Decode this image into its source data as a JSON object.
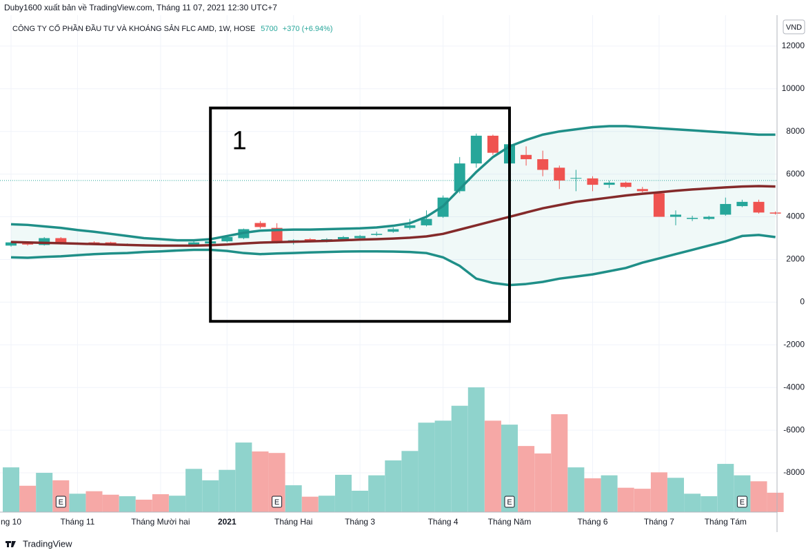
{
  "header": {
    "publisher": "Duby1600 xuất bản về TradingView.com, Tháng 11 07, 2021 12:30 UTC+7"
  },
  "footer": {
    "brand": "TradingView"
  },
  "chart_data": {
    "type": "candlestick",
    "title": "CÔNG TY CỔ PHẦN ĐẦU TƯ VÀ KHOÁNG SẢN FLC AMD, 1W, HOSE",
    "last_price": 5700,
    "change_label": "+370 (+6.94%)",
    "currency": "VND",
    "ylim": [
      -9840,
      13450
    ],
    "yticks": [
      -8000,
      -6000,
      -4000,
      -2000,
      0,
      2000,
      4000,
      6000,
      8000,
      10000,
      12000
    ],
    "grid": true,
    "up_color": "#26a69a",
    "down_color": "#ef5350",
    "categories": [
      "ng 10",
      null,
      null,
      null,
      "Tháng 11",
      null,
      null,
      null,
      null,
      "Tháng Mười hai",
      null,
      null,
      null,
      "2021",
      null,
      null,
      null,
      "Tháng Hai",
      null,
      null,
      null,
      "Tháng 3",
      null,
      null,
      null,
      null,
      "Tháng 4",
      null,
      null,
      null,
      "Tháng Năm",
      null,
      null,
      null,
      null,
      "Tháng 6",
      null,
      null,
      null,
      "Tháng 7",
      null,
      null,
      null,
      "Tháng Tám",
      null,
      null,
      null
    ],
    "open": [
      2650,
      2750,
      2680,
      3000,
      2750,
      2800,
      2800,
      2700,
      2680,
      2660,
      2650,
      2650,
      2750,
      2850,
      3000,
      3710,
      3480,
      2800,
      2950,
      2850,
      2950,
      3000,
      3150,
      3300,
      3480,
      3600,
      4000,
      5200,
      6500,
      7800,
      6500,
      6900,
      6700,
      6300,
      5800,
      5800,
      5500,
      5600,
      5300,
      5100,
      4000,
      3900,
      3900,
      4100,
      4500,
      4700,
      4200
    ],
    "high": [
      2850,
      2800,
      3050,
      3050,
      2800,
      2850,
      2830,
      2750,
      2720,
      2700,
      2700,
      2850,
      2900,
      3100,
      3450,
      3800,
      3700,
      2950,
      3000,
      3000,
      3100,
      3150,
      3300,
      3500,
      3900,
      4300,
      5000,
      6800,
      7900,
      7850,
      8000,
      7300,
      7100,
      6400,
      6200,
      5900,
      5700,
      5650,
      5400,
      5150,
      4300,
      4050,
      4050,
      4900,
      4800,
      4800,
      4250
    ],
    "low": [
      2600,
      2650,
      2650,
      2700,
      2700,
      2720,
      2680,
      2650,
      2620,
      2600,
      2600,
      2620,
      2700,
      2800,
      2950,
      3450,
      2750,
      2700,
      2800,
      2800,
      2900,
      2950,
      3100,
      3250,
      3400,
      3550,
      3950,
      5100,
      6300,
      6900,
      6300,
      6400,
      5900,
      5300,
      5200,
      5200,
      5350,
      5350,
      5150,
      4000,
      3600,
      3800,
      3850,
      4050,
      4450,
      4150,
      4100
    ],
    "close": [
      2800,
      2700,
      3000,
      2750,
      2760,
      2750,
      2700,
      2710,
      2650,
      2650,
      2660,
      2800,
      2850,
      3050,
      3420,
      3520,
      2780,
      2900,
      2850,
      2950,
      3050,
      3100,
      3200,
      3420,
      3600,
      3900,
      4900,
      6500,
      7800,
      7000,
      7400,
      6700,
      6200,
      5700,
      5820,
      5500,
      5600,
      5400,
      5200,
      4000,
      4100,
      3950,
      4000,
      4600,
      4700,
      4200,
      4150
    ],
    "bands": [
      {
        "color": "#1f8f88",
        "values": [
          3650,
          3620,
          3550,
          3480,
          3380,
          3300,
          3200,
          3100,
          3000,
          2950,
          2900,
          2900,
          2950,
          3100,
          3250,
          3350,
          3380,
          3400,
          3400,
          3420,
          3440,
          3460,
          3500,
          3580,
          3700,
          4000,
          4500,
          5300,
          6100,
          6800,
          7300,
          7600,
          7850,
          8000,
          8100,
          8200,
          8250,
          8250,
          8200,
          8150,
          8100,
          8050,
          8000,
          7950,
          7900,
          7850,
          7850
        ]
      },
      {
        "color": "#842a2a",
        "values": [
          2820,
          2800,
          2780,
          2760,
          2740,
          2720,
          2700,
          2680,
          2660,
          2650,
          2650,
          2650,
          2670,
          2700,
          2750,
          2790,
          2810,
          2830,
          2850,
          2870,
          2900,
          2930,
          2950,
          2980,
          3020,
          3080,
          3200,
          3400,
          3600,
          3800,
          4000,
          4200,
          4400,
          4550,
          4700,
          4800,
          4900,
          5000,
          5080,
          5150,
          5220,
          5280,
          5330,
          5380,
          5420,
          5440,
          5420
        ]
      },
      {
        "color": "#1f8f88",
        "values": [
          2100,
          2080,
          2120,
          2150,
          2200,
          2250,
          2280,
          2300,
          2350,
          2380,
          2420,
          2450,
          2450,
          2400,
          2300,
          2250,
          2280,
          2300,
          2330,
          2350,
          2370,
          2380,
          2380,
          2370,
          2350,
          2300,
          2100,
          1700,
          1100,
          900,
          800,
          850,
          950,
          1100,
          1200,
          1300,
          1450,
          1600,
          1850,
          2050,
          2250,
          2450,
          2650,
          2850,
          3100,
          3150,
          3050
        ]
      }
    ],
    "volume": {
      "y2lim": [
        0,
        100
      ],
      "up_color": "#8fd3cc",
      "down_color": "#f6a8a6",
      "values": [
        9.0,
        5.3,
        7.9,
        6.4,
        3.7,
        4.2,
        3.5,
        3.2,
        2.5,
        3.6,
        3.3,
        8.7,
        6.4,
        8.5,
        14.0,
        12.2,
        11.9,
        5.4,
        3.1,
        3.3,
        7.5,
        4.3,
        7.4,
        10.4,
        12.3,
        18.0,
        18.4,
        21.4,
        25.1,
        18.4,
        17.6,
        13.3,
        11.8,
        19.7,
        9.0,
        6.8,
        7.4,
        4.9,
        4.7,
        8.0,
        6.9,
        3.7,
        3.2,
        9.7,
        7.4,
        6.2,
        3.9
      ]
    },
    "events": [
      {
        "index": 3,
        "label": "E"
      },
      {
        "index": 16,
        "label": "E"
      },
      {
        "index": 30,
        "label": "E"
      },
      {
        "index": 44,
        "label": "E"
      }
    ],
    "annotation": {
      "text": "1",
      "x0": 12,
      "x1": 30,
      "y0": -900,
      "y1": 9100
    }
  }
}
